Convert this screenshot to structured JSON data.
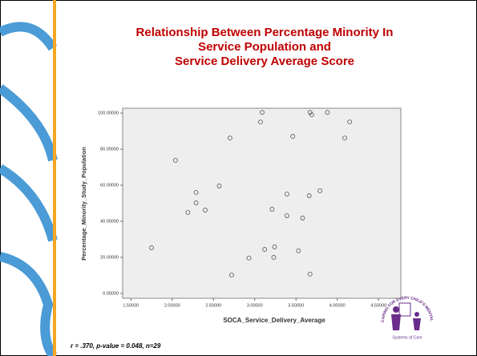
{
  "chart_data": {
    "type": "scatter",
    "title": [
      "Relationship Between Percentage Minority In",
      "Service Population and",
      "Service Delivery Average Score"
    ],
    "x_label": "SOCA_Service_Delivery_Average",
    "y_label": "Percentage_Minority_Study_Population",
    "annotation": "r = .370, p-value = 0.048, n=29",
    "color": "#555555",
    "x": [
      1.75,
      2.04,
      2.19,
      2.29,
      2.29,
      2.4,
      2.57,
      2.7,
      2.72,
      2.93,
      3.07,
      3.09,
      3.12,
      3.21,
      3.24,
      3.23,
      3.39,
      3.39,
      3.46,
      3.53,
      3.58,
      3.67,
      3.69,
      3.66,
      3.67,
      3.79,
      3.88,
      4.09,
      4.15
    ],
    "values": [
      25.3,
      73.8,
      44.9,
      56,
      50.2,
      46.2,
      59.6,
      86.2,
      10.2,
      19.6,
      95.1,
      100.4,
      24.4,
      46.7,
      25.8,
      20,
      55.1,
      43.1,
      87.1,
      23.6,
      41.8,
      100.4,
      99.1,
      54.2,
      10.7,
      56.9,
      100.4,
      86.2,
      95.1
    ],
    "xlim": [
      1.4,
      4.77
    ],
    "ylim": [
      -2.7,
      102.7
    ],
    "xticks": [
      {
        "value": 1.5,
        "label": "1.50000"
      },
      {
        "value": 2,
        "label": "2.00000"
      },
      {
        "value": 2.5,
        "label": "2.50000"
      },
      {
        "value": 3,
        "label": "3.00000"
      },
      {
        "value": 3.5,
        "label": "3.50000"
      },
      {
        "value": 4,
        "label": "4.00000"
      },
      {
        "value": 4.5,
        "label": "4.50000"
      }
    ],
    "yticks": [
      {
        "value": 0,
        "label": "0.00000"
      },
      {
        "value": 20,
        "label": "20.00000"
      },
      {
        "value": 40,
        "label": "40.00000"
      },
      {
        "value": 60,
        "label": "60.00000"
      },
      {
        "value": 80,
        "label": "80.00000"
      },
      {
        "value": 100,
        "label": "100.00000"
      }
    ]
  },
  "logo": {
    "ring_text": "CARING FOR EVERY CHILD'S MENTAL HEALTH",
    "caption": "Systems of Care"
  }
}
